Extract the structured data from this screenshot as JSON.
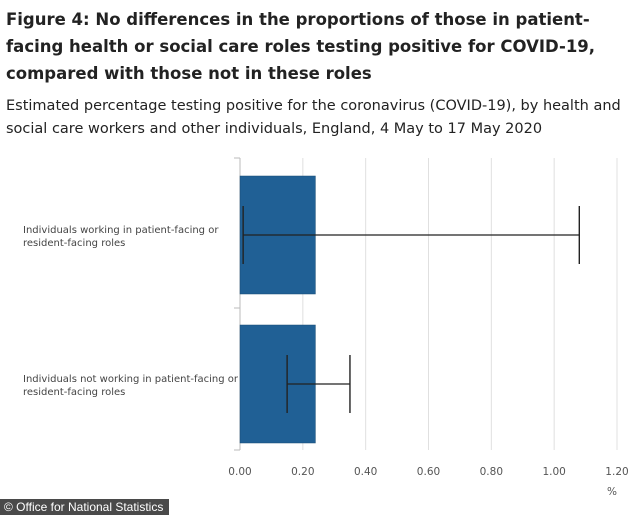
{
  "header": {
    "title": "Figure 4: No differences in the proportions of those in patient-facing health or social care roles testing positive for COVID-19, compared with those not in these roles",
    "subtitle": "Estimated percentage testing positive for the coronavirus (COVID-19), by health and social care workers and other individuals, England, 4 May to 17 May 2020"
  },
  "chart_data": {
    "type": "bar",
    "orientation": "horizontal",
    "categories": [
      [
        "Individuals working in patient-facing or",
        "resident-facing roles"
      ],
      [
        "Individuals not working in patient-facing or",
        "resident-facing roles"
      ]
    ],
    "values": [
      0.24,
      0.24
    ],
    "error_low": [
      0.01,
      0.15
    ],
    "error_high": [
      1.08,
      0.35
    ],
    "xlim": [
      0,
      1.2
    ],
    "xticks": [
      "0.00",
      "0.20",
      "0.40",
      "0.60",
      "0.80",
      "1.00",
      "1.20"
    ],
    "xlabel": "%",
    "grid": true,
    "bar_color": "#206095",
    "error_color": "#222222"
  },
  "footer": {
    "source": "© Office for National Statistics"
  }
}
